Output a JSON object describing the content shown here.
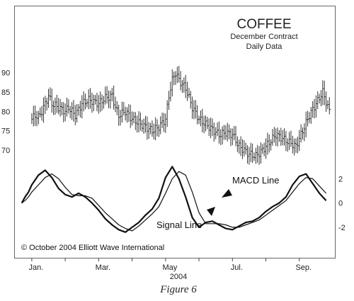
{
  "chart_data": [
    {
      "type": "ohlc",
      "title": "COFFEE",
      "subtitle_lines": [
        "December Contract",
        "Daily Data"
      ],
      "y_ticks": [
        70,
        75,
        80,
        85,
        90
      ],
      "ylim": [
        64,
        95
      ],
      "x_ticks": [
        "Jan.",
        "Mar.",
        "May",
        "Jul.",
        "Sep."
      ],
      "x_tick_months": [
        1,
        3,
        5,
        7,
        9
      ],
      "x_range_months": [
        0.6,
        10.0
      ],
      "x_year_label": "2004",
      "series": [
        {
          "x_month": [
            1.0,
            1.1,
            1.2,
            1.3,
            1.5,
            1.6,
            1.8,
            2.0,
            2.1,
            2.3,
            2.5,
            2.7,
            3.0,
            3.2,
            3.4,
            3.5,
            3.6,
            3.8,
            4.0,
            4.3,
            4.6,
            4.8,
            5.0,
            5.1,
            5.2,
            5.3,
            5.4,
            5.5,
            5.6,
            5.8,
            6.0,
            6.3,
            6.6,
            6.8,
            7.0,
            7.2,
            7.5,
            7.7,
            7.9,
            8.1,
            8.3,
            8.5,
            8.7,
            8.9,
            9.1,
            9.3,
            9.5,
            9.7,
            9.9
          ],
          "y_close": [
            78,
            79,
            78.5,
            80,
            84,
            82,
            81,
            80,
            81,
            79,
            82,
            83,
            82,
            83.5,
            84,
            81,
            79,
            80,
            78,
            76.5,
            75,
            76,
            78,
            84,
            88,
            90,
            88,
            87,
            86,
            81,
            78,
            76,
            74,
            74.5,
            74,
            71,
            69,
            68.5,
            70,
            72,
            74,
            73,
            72,
            71,
            75,
            79,
            82,
            85,
            80
          ]
        }
      ]
    },
    {
      "type": "line",
      "y_ticks": [
        2,
        0,
        -2
      ],
      "ylim": [
        -4.4,
        3.6
      ],
      "annotations": [
        "MACD Line",
        "Signal Line"
      ],
      "series": [
        {
          "name": "MACD Line",
          "x_month": [
            0.7,
            0.8,
            0.9,
            1.0,
            1.2,
            1.4,
            1.6,
            1.8,
            2.0,
            2.2,
            2.4,
            2.6,
            2.8,
            3.0,
            3.2,
            3.4,
            3.6,
            3.8,
            4.0,
            4.2,
            4.4,
            4.6,
            4.8,
            5.0,
            5.2,
            5.4,
            5.6,
            5.8,
            6.0,
            6.2,
            6.4,
            6.6,
            6.8,
            7.0,
            7.2,
            7.4,
            7.6,
            7.8,
            8.0,
            8.2,
            8.4,
            8.6,
            8.8,
            9.0,
            9.2,
            9.4,
            9.6,
            9.8
          ],
          "y": [
            0.0,
            0.5,
            0.9,
            1.5,
            2.3,
            2.7,
            2.1,
            1.2,
            0.7,
            0.5,
            0.8,
            0.5,
            0.0,
            -0.6,
            -1.3,
            -1.8,
            -2.2,
            -2.4,
            -2.0,
            -1.6,
            -1.0,
            -0.5,
            0.4,
            2.1,
            3.0,
            2.0,
            0.5,
            -1.2,
            -2.0,
            -1.6,
            -1.5,
            -1.8,
            -2.1,
            -2.2,
            -1.9,
            -1.6,
            -1.5,
            -1.2,
            -0.7,
            -0.3,
            0.0,
            0.5,
            1.5,
            2.2,
            2.4,
            1.6,
            0.8,
            0.2
          ]
        },
        {
          "name": "Signal Line",
          "x_month": [
            0.7,
            0.8,
            0.9,
            1.0,
            1.2,
            1.4,
            1.6,
            1.8,
            2.0,
            2.2,
            2.4,
            2.6,
            2.8,
            3.0,
            3.2,
            3.4,
            3.6,
            3.8,
            4.0,
            4.2,
            4.4,
            4.6,
            4.8,
            5.0,
            5.2,
            5.4,
            5.6,
            5.8,
            6.0,
            6.2,
            6.4,
            6.6,
            6.8,
            7.0,
            7.2,
            7.4,
            7.6,
            7.8,
            8.0,
            8.2,
            8.4,
            8.6,
            8.8,
            9.0,
            9.2,
            9.4,
            9.6,
            9.8
          ],
          "y": [
            0.0,
            0.2,
            0.5,
            0.9,
            1.5,
            2.1,
            2.4,
            2.0,
            1.3,
            0.7,
            0.6,
            0.6,
            0.4,
            -0.2,
            -0.8,
            -1.3,
            -1.8,
            -2.1,
            -2.3,
            -1.9,
            -1.4,
            -0.9,
            -0.3,
            0.8,
            2.0,
            2.6,
            2.3,
            0.9,
            -0.8,
            -1.7,
            -1.7,
            -1.7,
            -1.8,
            -2.0,
            -2.0,
            -1.8,
            -1.6,
            -1.4,
            -1.0,
            -0.6,
            -0.2,
            0.2,
            0.9,
            1.6,
            2.1,
            2.0,
            1.4,
            0.8
          ]
        }
      ]
    }
  ],
  "copyright": "© October 2004 Elliott Wave International",
  "caption": "Figure 6"
}
